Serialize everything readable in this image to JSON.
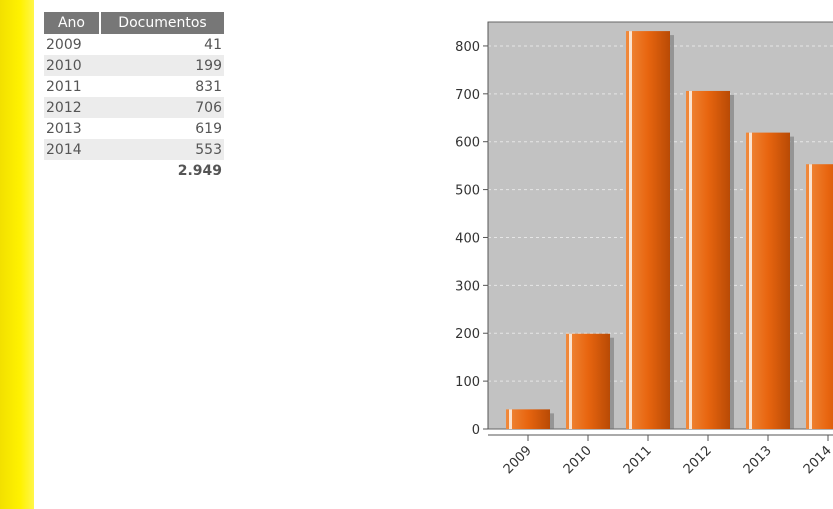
{
  "table": {
    "header": {
      "ano": "Ano",
      "documentos": "Documentos"
    },
    "rows": [
      {
        "ano": "2009",
        "documentos": "41"
      },
      {
        "ano": "2010",
        "documentos": "199"
      },
      {
        "ano": "2011",
        "documentos": "831"
      },
      {
        "ano": "2012",
        "documentos": "706"
      },
      {
        "ano": "2013",
        "documentos": "619"
      },
      {
        "ano": "2014",
        "documentos": "553"
      }
    ],
    "total": "2.949"
  },
  "colors": {
    "bar": "#ea6a12",
    "plot_background": "#c2c2c2",
    "frame": "#ffff00"
  },
  "chart_data": {
    "type": "bar",
    "categories": [
      "2009",
      "2010",
      "2011",
      "2012",
      "2013",
      "2014"
    ],
    "values": [
      41,
      199,
      831,
      706,
      619,
      553
    ],
    "title": "",
    "xlabel": "",
    "ylabel": "",
    "ylim": [
      0,
      850
    ],
    "yticks": [
      0,
      100,
      200,
      300,
      400,
      500,
      600,
      700,
      800
    ],
    "grid": true
  }
}
